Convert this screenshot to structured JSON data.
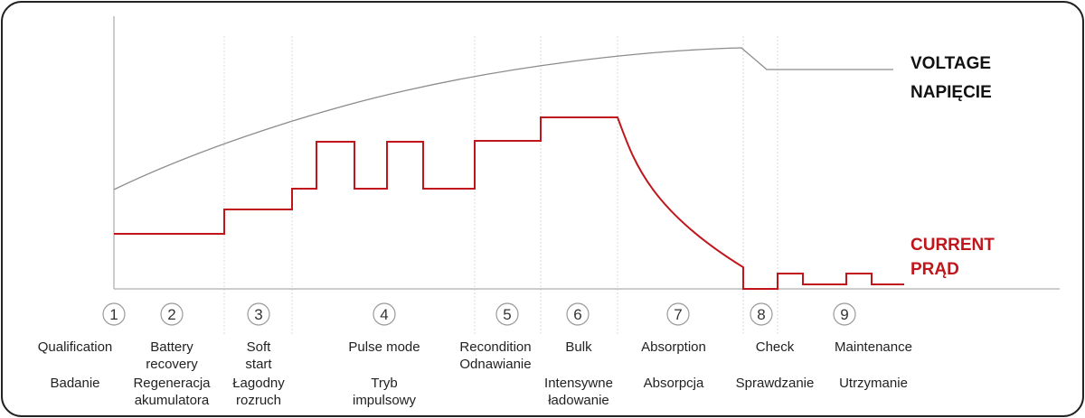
{
  "legend": {
    "voltage_en": "VOLTAGE",
    "voltage_pl": "NAPIĘCIE",
    "current_en": "CURRENT",
    "current_pl": "PRĄD",
    "voltage_color": "#8c8c8c",
    "current_color": "#c0161b"
  },
  "stages": [
    {
      "num": "1",
      "en": [
        "Qualification"
      ],
      "pl": [
        "Badanie"
      ]
    },
    {
      "num": "2",
      "en": [
        "Battery",
        "recovery"
      ],
      "pl": [
        "Regeneracja",
        "akumulatora"
      ]
    },
    {
      "num": "3",
      "en": [
        "Soft",
        "start"
      ],
      "pl": [
        "Łagodny",
        "rozruch"
      ]
    },
    {
      "num": "4",
      "en": [
        "Pulse mode"
      ],
      "pl": [
        "Tryb",
        "impulsowy"
      ]
    },
    {
      "num": "5",
      "en": [
        "Recondition",
        "Odnawianie"
      ],
      "pl": []
    },
    {
      "num": "6",
      "en": [
        "Bulk"
      ],
      "pl": [
        "Intensywne",
        "ładowanie"
      ]
    },
    {
      "num": "7",
      "en": [
        "Absorption"
      ],
      "pl": [
        "Absorpcja"
      ]
    },
    {
      "num": "8",
      "en": [
        "Check"
      ],
      "pl": [
        "Sprawdzanie"
      ]
    },
    {
      "num": "9",
      "en": [
        "Maintenance"
      ],
      "pl": [
        "Utrzymanie"
      ]
    }
  ]
}
